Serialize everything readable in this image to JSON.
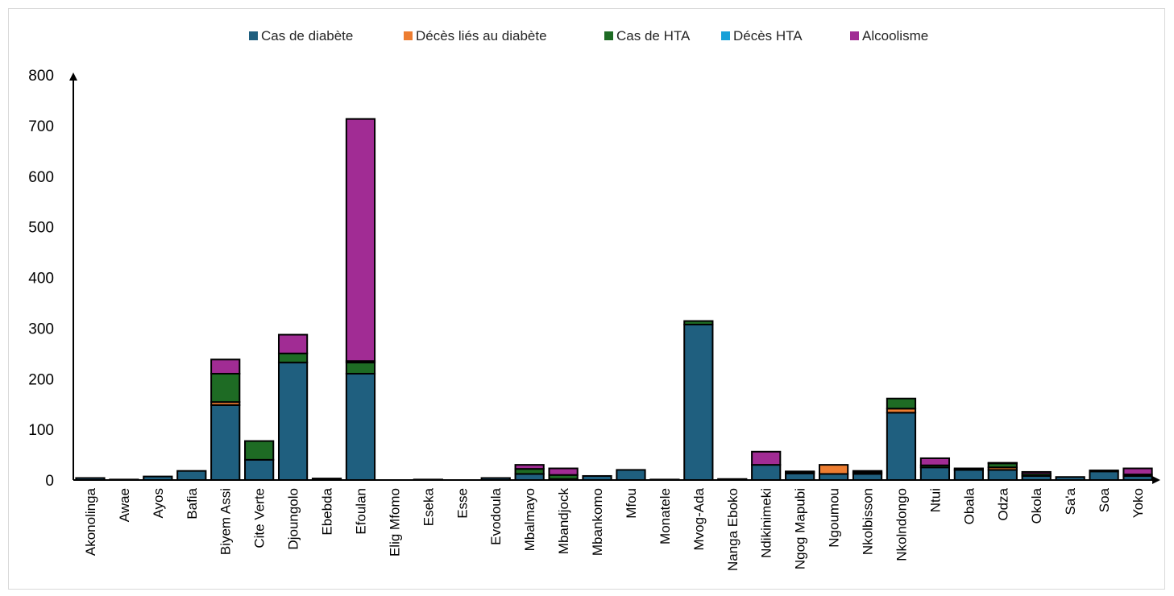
{
  "chart_data": {
    "type": "bar",
    "stacked": true,
    "ylim": [
      0,
      800
    ],
    "yticks": [
      0,
      100,
      200,
      300,
      400,
      500,
      600,
      700,
      800
    ],
    "grid": false,
    "legend_position": "top",
    "categories": [
      "Akonolinga",
      "Awae",
      "Ayos",
      "Bafia",
      "Biyem Assi",
      "Cite Verte",
      "Djoungolo",
      "Ebebda",
      "Efoulan",
      "Elig Mfomo",
      "Eseka",
      "Esse",
      "Evodoula",
      "Mbalmayo",
      "Mbandjock",
      "Mbankomo",
      "Mfou",
      "Monatele",
      "Mvog-Ada",
      "Nanga Eboko",
      "Ndikinimeki",
      "Ngog Mapubi",
      "Ngoumou",
      "Nkolbisson",
      "Nkolndongo",
      "Ntui",
      "Obala",
      "Odza",
      "Okola",
      "Sa'a",
      "Soa",
      "Yoko"
    ],
    "series": [
      {
        "name": "Cas de diabète",
        "color": "#1f5f7f",
        "values": [
          4,
          1,
          7,
          18,
          148,
          40,
          232,
          3,
          210,
          0,
          1,
          0,
          4,
          12,
          2,
          8,
          20,
          1,
          307,
          2,
          30,
          13,
          12,
          12,
          133,
          25,
          20,
          20,
          8,
          6,
          17,
          8
        ]
      },
      {
        "name": "Décès liés au diabète",
        "color": "#ed7d31",
        "values": [
          0,
          0,
          0,
          0,
          6,
          0,
          0,
          0,
          0,
          0,
          0,
          0,
          0,
          0,
          0,
          0,
          0,
          0,
          0,
          0,
          0,
          0,
          18,
          0,
          8,
          0,
          0,
          5,
          0,
          0,
          0,
          0
        ]
      },
      {
        "name": "Cas de HTA",
        "color": "#1e6b24",
        "values": [
          0,
          0,
          0,
          0,
          56,
          37,
          18,
          0,
          22,
          0,
          0,
          0,
          0,
          10,
          8,
          0,
          0,
          0,
          7,
          0,
          0,
          3,
          0,
          3,
          20,
          4,
          3,
          8,
          4,
          0,
          2,
          3
        ]
      },
      {
        "name": "Décès HTA",
        "color": "#17a0d8",
        "values": [
          0,
          0,
          0,
          0,
          0,
          0,
          0,
          0,
          3,
          0,
          0,
          0,
          0,
          0,
          0,
          0,
          0,
          0,
          0,
          0,
          0,
          0,
          0,
          0,
          0,
          0,
          0,
          0,
          0,
          0,
          0,
          0
        ]
      },
      {
        "name": "Alcoolisme",
        "color": "#a12c94",
        "values": [
          0,
          0,
          0,
          0,
          28,
          0,
          37,
          0,
          478,
          0,
          0,
          0,
          0,
          8,
          13,
          0,
          0,
          0,
          0,
          0,
          26,
          1,
          0,
          3,
          0,
          14,
          0,
          1,
          4,
          0,
          0,
          12
        ]
      }
    ]
  }
}
